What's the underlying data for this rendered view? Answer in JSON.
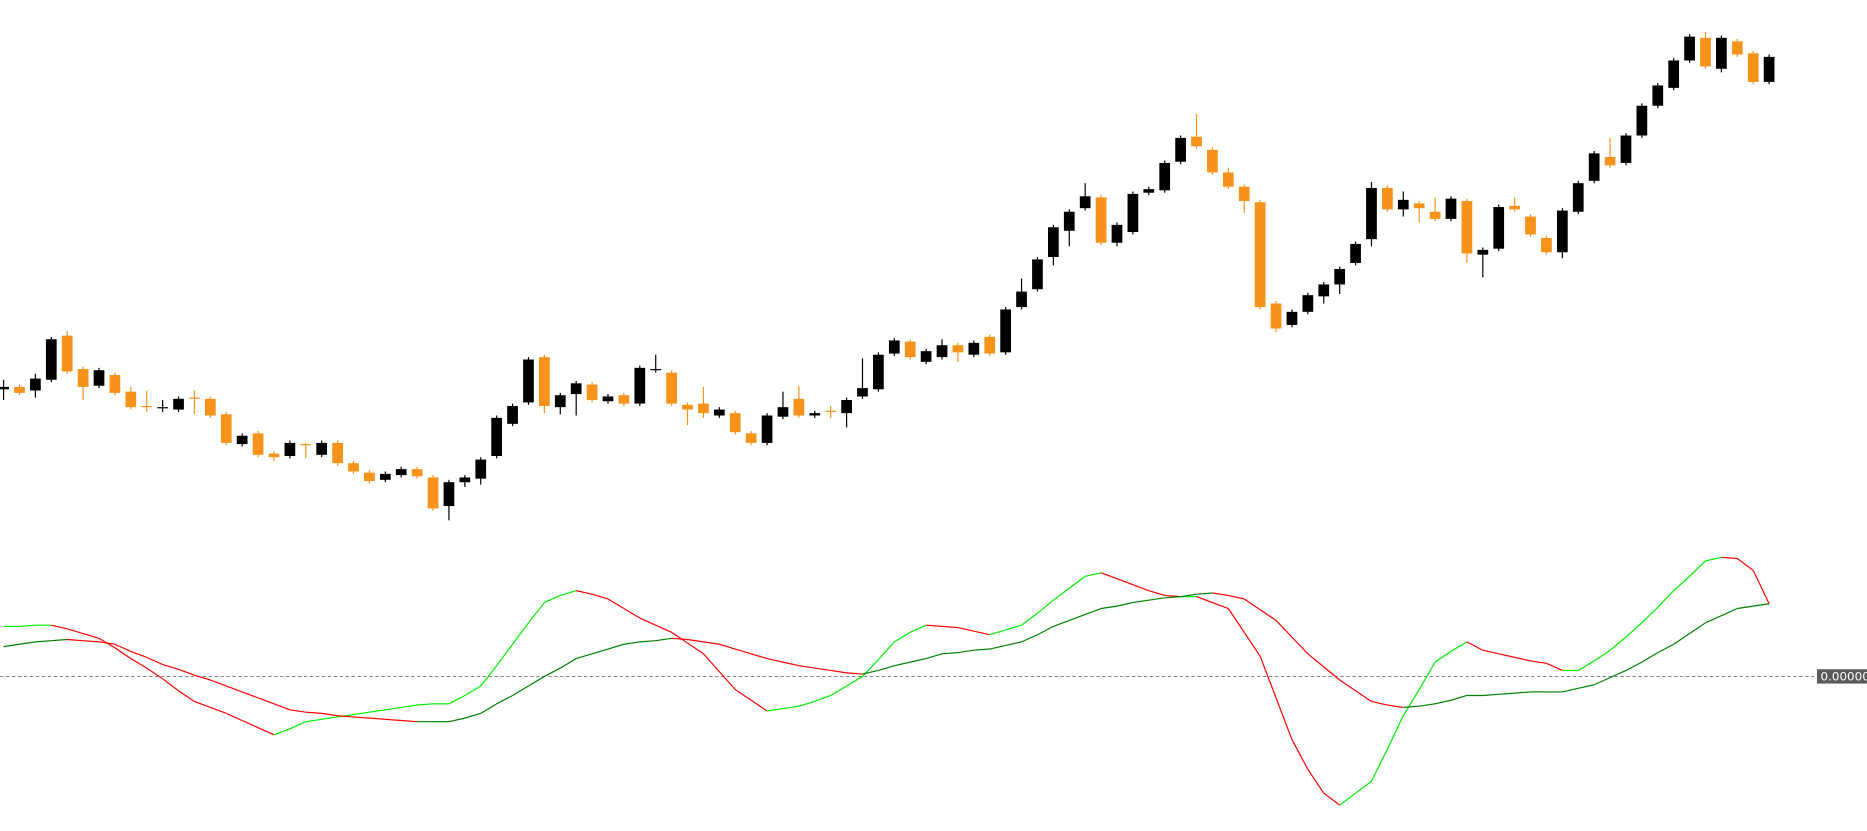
{
  "chart_data": [
    {
      "type": "candlestick",
      "up_color": "#000000",
      "down_color": "#f7931a",
      "ylim": [
        250,
        700
      ],
      "open": [
        374,
        376,
        373,
        382,
        419,
        391,
        377,
        386,
        372,
        360,
        358,
        357,
        367,
        366,
        353,
        328,
        337,
        320,
        318,
        328,
        319,
        329,
        312,
        304,
        298,
        302,
        307,
        300,
        276,
        296,
        299,
        318,
        345,
        363,
        401,
        359,
        370,
        378,
        364,
        369,
        362,
        390,
        388,
        361,
        362,
        352,
        354,
        337,
        329,
        351,
        366,
        352,
        356,
        354,
        368,
        374,
        404,
        414,
        397,
        401,
        411,
        403,
        418,
        405,
        443,
        458,
        485,
        507,
        526,
        535,
        497,
        506,
        539,
        541,
        565,
        586,
        575,
        556,
        544,
        531,
        446,
        428,
        439,
        452,
        462,
        480,
        500,
        543,
        525,
        530,
        523,
        517,
        532,
        487,
        492,
        528,
        519,
        501,
        489,
        523,
        549,
        569,
        564,
        587,
        612,
        627,
        650,
        669,
        643,
        666,
        656,
        632
      ],
      "high": [
        382,
        378,
        387,
        418,
        423,
        393,
        392,
        388,
        376,
        373,
        365,
        368,
        373,
        368,
        355,
        337,
        339,
        322,
        331,
        329,
        331,
        331,
        314,
        306,
        305,
        309,
        309,
        302,
        298,
        302,
        317,
        352,
        362,
        401,
        403,
        371,
        381,
        380,
        370,
        371,
        394,
        403,
        390,
        363,
        376,
        359,
        356,
        339,
        354,
        372,
        377,
        356,
        360,
        367,
        400,
        405,
        417,
        416,
        408,
        416,
        413,
        415,
        420,
        443,
        467,
        485,
        512,
        525,
        547,
        537,
        514,
        540,
        544,
        566,
        587,
        605,
        577,
        560,
        546,
        533,
        448,
        441,
        455,
        464,
        477,
        498,
        548,
        545,
        540,
        532,
        535,
        536,
        534,
        493,
        529,
        535,
        521,
        503,
        526,
        549,
        574,
        585,
        589,
        614,
        631,
        652,
        672,
        674,
        671,
        668,
        658,
        655
      ],
      "low": [
        365,
        369,
        367,
        380,
        387,
        365,
        375,
        369,
        357,
        355,
        355,
        355,
        353,
        350,
        327,
        326,
        317,
        314,
        316,
        316,
        317,
        310,
        303,
        295,
        296,
        300,
        299,
        272,
        264,
        292,
        294,
        316,
        343,
        361,
        354,
        353,
        352,
        363,
        362,
        360,
        360,
        388,
        360,
        344,
        350,
        350,
        336,
        327,
        327,
        349,
        350,
        350,
        350,
        342,
        366,
        372,
        402,
        399,
        395,
        399,
        397,
        401,
        402,
        403,
        441,
        456,
        478,
        494,
        524,
        495,
        494,
        504,
        537,
        539,
        563,
        576,
        554,
        542,
        522,
        441,
        422,
        426,
        437,
        446,
        454,
        478,
        494,
        523,
        519,
        514,
        515,
        515,
        480,
        468,
        490,
        523,
        502,
        487,
        484,
        521,
        547,
        560,
        562,
        585,
        610,
        625,
        648,
        643,
        640,
        653,
        630,
        630
      ],
      "close": [
        376,
        371,
        383,
        416,
        389,
        376,
        390,
        371,
        359,
        359,
        359,
        366,
        366,
        352,
        329,
        335,
        319,
        317,
        329,
        327,
        329,
        312,
        305,
        297,
        303,
        307,
        301,
        274,
        296,
        300,
        315,
        350,
        360,
        399,
        360,
        369,
        379,
        365,
        368,
        362,
        392,
        391,
        362,
        357,
        354,
        357,
        338,
        329,
        352,
        359,
        352,
        354,
        355,
        365,
        375,
        403,
        415,
        401,
        406,
        411,
        405,
        413,
        404,
        441,
        456,
        483,
        510,
        523,
        536,
        497,
        512,
        538,
        542,
        564,
        585,
        578,
        556,
        544,
        532,
        443,
        425,
        439,
        453,
        462,
        475,
        496,
        543,
        525,
        533,
        526,
        517,
        534,
        488,
        491,
        527,
        525,
        504,
        489,
        524,
        547,
        572,
        562,
        587,
        612,
        629,
        650,
        670,
        645,
        669,
        655,
        632,
        653
      ]
    },
    {
      "type": "line",
      "ylim": [
        -0.0013,
        0.0012
      ],
      "yticks": [
        {
          "value": 0,
          "label": "0.00000"
        }
      ],
      "series": [
        {
          "rising_color": "#00ee00",
          "falling_color": "#ff0000",
          "values": [
            0.00042,
            0.00042,
            0.00043,
            0.00043,
            0.0004,
            0.00036,
            0.00032,
            0.00024,
            0.00015,
            7e-05,
            -2e-05,
            -0.00012,
            -0.00021,
            -0.00026,
            -0.00031,
            -0.00037,
            -0.00043,
            -0.00049,
            -0.00044,
            -0.00038,
            -0.00036,
            -0.00034,
            -0.00032,
            -0.0003,
            -0.00028,
            -0.00026,
            -0.00024,
            -0.00023,
            -0.00023,
            -0.00016,
            -8e-05,
            9e-05,
            0.00027,
            0.00045,
            0.00062,
            0.00068,
            0.00072,
            0.00069,
            0.00065,
            0.00057,
            0.00049,
            0.00043,
            0.00037,
            0.00028,
            0.00019,
            4e-05,
            -0.00011,
            -0.0002,
            -0.00029,
            -0.00027,
            -0.00025,
            -0.00021,
            -0.00016,
            -8e-05,
            0,
            0.00014,
            0.00029,
            0.00037,
            0.00043,
            0.00042,
            0.00041,
            0.00038,
            0.00035,
            0.00039,
            0.00043,
            0.00053,
            0.00064,
            0.00074,
            0.00084,
            0.00087,
            0.00082,
            0.00077,
            0.00072,
            0.00068,
            0.00067,
            0.00067,
            0.00062,
            0.00057,
            0.00037,
            0.00017,
            -0.00018,
            -0.00053,
            -0.00078,
            -0.00098,
            -0.00108,
            -0.00098,
            -0.00088,
            -0.00061,
            -0.00033,
            -0.00011,
            0.00012,
            0.00021,
            0.00029,
            0.00022,
            0.00019,
            0.00016,
            0.00013,
            0.00011,
            5e-05,
            5e-05,
            0.00013,
            0.00022,
            0.00033,
            0.00045,
            0.00058,
            0.00072,
            0.00084,
            0.00097,
            0.001,
            0.00099,
            0.00089,
            0.00061
          ]
        },
        {
          "rising_color": "#008000",
          "falling_color": "#ff0000",
          "values": [
            0.00025,
            0.00027,
            0.00029,
            0.0003,
            0.00031,
            0.0003,
            0.00029,
            0.00027,
            0.00021,
            0.00016,
            0.0001,
            6e-05,
            1e-05,
            -3e-05,
            -8e-05,
            -0.00013,
            -0.00018,
            -0.00023,
            -0.00028,
            -0.0003,
            -0.00031,
            -0.00033,
            -0.00034,
            -0.00035,
            -0.00036,
            -0.00037,
            -0.00038,
            -0.00038,
            -0.00038,
            -0.00035,
            -0.00031,
            -0.00023,
            -0.00016,
            -8e-05,
            0,
            7e-05,
            0.00015,
            0.00019,
            0.00023,
            0.00027,
            0.00029,
            0.0003,
            0.00032,
            0.00031,
            0.00029,
            0.00027,
            0.00023,
            0.00019,
            0.00015,
            0.00012,
            9e-05,
            7e-05,
            5e-05,
            3e-05,
            2e-05,
            5e-05,
            9e-05,
            0.00012,
            0.00015,
            0.00019,
            0.0002,
            0.00022,
            0.00023,
            0.00026,
            0.00029,
            0.00035,
            0.00042,
            0.00047,
            0.00052,
            0.00057,
            0.00059,
            0.00062,
            0.00064,
            0.00066,
            0.00067,
            0.00069,
            0.0007,
            0.00068,
            0.00065,
            0.00056,
            0.00047,
            0.00033,
            0.00019,
            8e-05,
            -3e-05,
            -0.00012,
            -0.00021,
            -0.00024,
            -0.00026,
            -0.00025,
            -0.00023,
            -0.0002,
            -0.00016,
            -0.00016,
            -0.00015,
            -0.00014,
            -0.00013,
            -0.00013,
            -0.00013,
            -0.0001,
            -7e-05,
            -1e-05,
            5e-05,
            0.00012,
            0.0002,
            0.00027,
            0.00036,
            0.00045,
            0.00051,
            0.00057,
            0.00059,
            0.00061
          ]
        }
      ]
    }
  ]
}
